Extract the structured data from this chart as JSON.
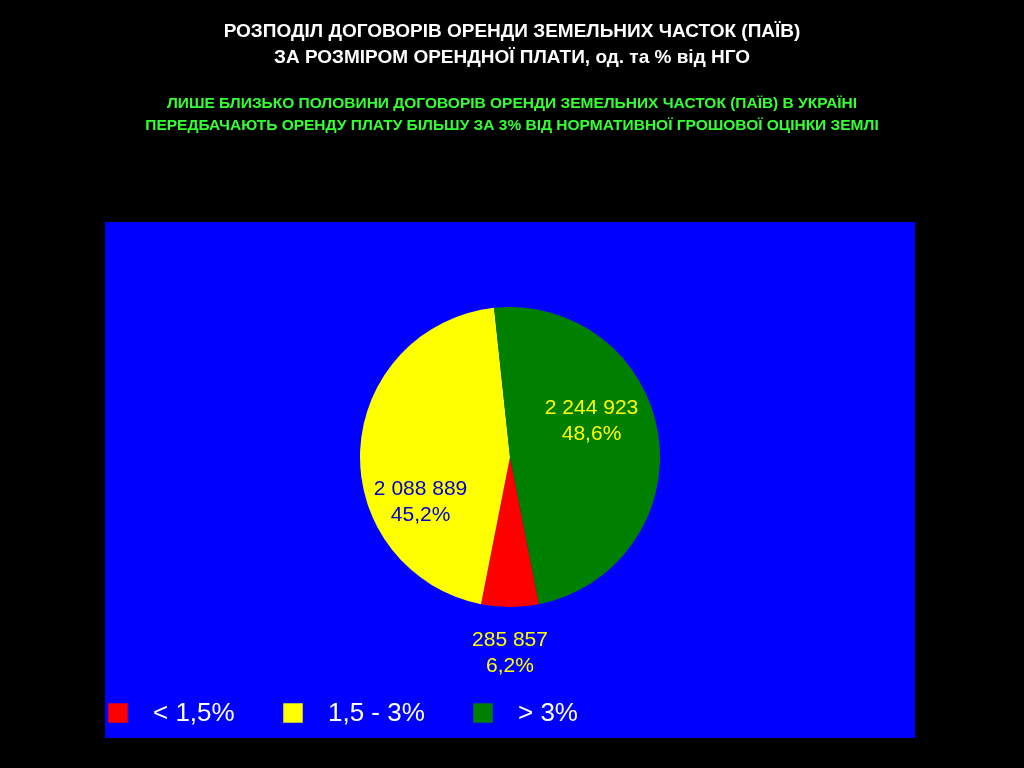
{
  "chart_data": {
    "type": "pie",
    "title": "РОЗПОДІЛ ДОГОВОРІВ ОРЕНДИ ЗЕМЕЛЬНИХ ЧАСТОК (ПАЇВ)\nЗА РОЗМІРОМ ОРЕНДНОЇ ПЛАТИ, од. та % від НГО",
    "subtitle": "ЛИШЕ БЛИЗЬКО ПОЛОВИНИ ДОГОВОРІВ ОРЕНДИ ЗЕМЕЛЬНИХ ЧАСТОК (ПАЇВ) В УКРАЇНІ\nПЕРЕДБАЧАЮТЬ ОРЕНДУ ПЛАТУ БІЛЬШУ ЗА 3% ВІД НОРМАТИВНОЇ ГРОШОВОЇ ОЦІНКИ ЗЕМЛІ",
    "categories": [
      "< 1,5%",
      "1,5 - 3%",
      "> 3%"
    ],
    "values": [
      285857,
      2088889,
      2244923
    ],
    "colors": [
      "#ff0000",
      "#ffff00",
      "#008000"
    ],
    "value_labels": [
      "285 857\n6,2%",
      "2 088 889\n45,2%",
      "2 244 923\n48,6%"
    ],
    "legend": "bottom"
  }
}
